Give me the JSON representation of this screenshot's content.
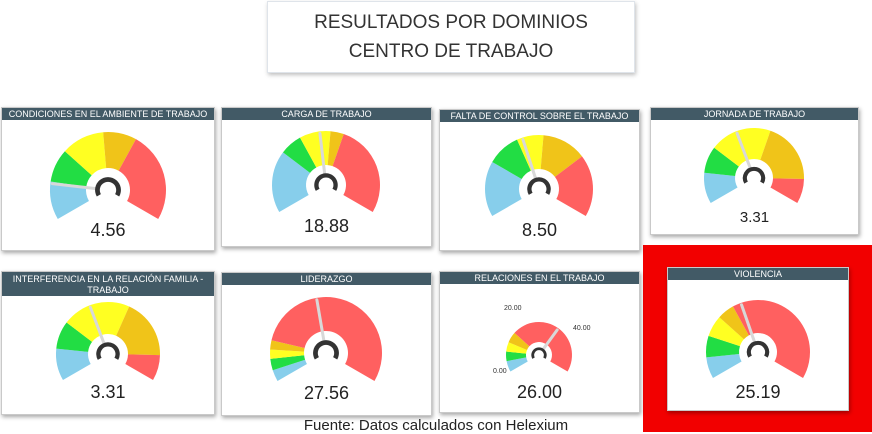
{
  "page": {
    "title": "RESULTADOS POR DOMINIOS CENTRO DE TRABAJO",
    "source": "Fuente: Datos calculados con Helexium"
  },
  "colors": {
    "header_bg": "#425a66",
    "blue": "#87ceeb",
    "green": "#22dd44",
    "yellow": "#ffff22",
    "amber": "#f0c419",
    "red": "#ff6060",
    "highlight": "#f20000"
  },
  "gauges": [
    {
      "title": "CONDICIONES EN EL AMBIENTE DE TRABAJO",
      "value": "4.56",
      "value_num": 4.56,
      "scale": [
        0,
        30
      ],
      "bands": [
        {
          "to": 0.16,
          "color": "blue"
        },
        {
          "to": 0.3,
          "color": "green"
        },
        {
          "to": 0.48,
          "color": "yellow"
        },
        {
          "to": 0.62,
          "color": "amber"
        },
        {
          "to": 1,
          "color": "red"
        }
      ]
    },
    {
      "title": "CARGA DE TRABAJO",
      "value": "18.88",
      "value_num": 18.88,
      "scale": [
        0,
        40
      ],
      "bands": [
        {
          "to": 0.28,
          "color": "blue"
        },
        {
          "to": 0.38,
          "color": "green"
        },
        {
          "to": 0.52,
          "color": "yellow"
        },
        {
          "to": 0.58,
          "color": "amber"
        },
        {
          "to": 1,
          "color": "red"
        }
      ]
    },
    {
      "title": "FALTA DE CONTROL SOBRE EL TRABAJO",
      "value": "8.50",
      "value_num": 8.5,
      "scale": [
        0,
        20
      ],
      "bands": [
        {
          "to": 0.25,
          "color": "blue"
        },
        {
          "to": 0.4,
          "color": "green"
        },
        {
          "to": 0.52,
          "color": "yellow"
        },
        {
          "to": 0.72,
          "color": "amber"
        },
        {
          "to": 1,
          "color": "red"
        }
      ]
    },
    {
      "title": "JORNADA DE TRABAJO",
      "value": "3.31",
      "value_num": 3.31,
      "scale": [
        0,
        8
      ],
      "bands": [
        {
          "to": 0.15,
          "color": "blue"
        },
        {
          "to": 0.28,
          "color": "green"
        },
        {
          "to": 0.58,
          "color": "yellow"
        },
        {
          "to": 0.88,
          "color": "amber"
        },
        {
          "to": 1,
          "color": "red"
        }
      ]
    },
    {
      "title": "INTERFERENCIA EN LA RELACIÓN FAMILIA - TRABAJO",
      "value": "3.31",
      "value_num": 3.31,
      "scale": [
        0,
        8
      ],
      "bands": [
        {
          "to": 0.15,
          "color": "blue"
        },
        {
          "to": 0.28,
          "color": "green"
        },
        {
          "to": 0.6,
          "color": "yellow"
        },
        {
          "to": 0.88,
          "color": "amber"
        },
        {
          "to": 1,
          "color": "red"
        }
      ]
    },
    {
      "title": "LIDERAZGO",
      "value": "27.56",
      "value_num": 27.56,
      "scale": [
        0,
        60
      ],
      "bands": [
        {
          "to": 0.05,
          "color": "blue"
        },
        {
          "to": 0.1,
          "color": "green"
        },
        {
          "to": 0.14,
          "color": "yellow"
        },
        {
          "to": 0.18,
          "color": "amber"
        },
        {
          "to": 1,
          "color": "red"
        }
      ]
    },
    {
      "title": "RELACIONES EN EL TRABAJO",
      "value": "26.00",
      "value_num": 26.0,
      "scale": [
        0,
        40
      ],
      "min_label": "0.00",
      "mid_label": "20.00",
      "max_label": "40.00",
      "bands": [
        {
          "to": 0.08,
          "color": "blue"
        },
        {
          "to": 0.15,
          "color": "green"
        },
        {
          "to": 0.22,
          "color": "yellow"
        },
        {
          "to": 0.3,
          "color": "amber"
        },
        {
          "to": 1,
          "color": "red"
        }
      ]
    },
    {
      "title": "VIOLENCIA",
      "value": "25.19",
      "value_num": 25.19,
      "scale": [
        0,
        60
      ],
      "bands": [
        {
          "to": 0.1,
          "color": "blue"
        },
        {
          "to": 0.2,
          "color": "green"
        },
        {
          "to": 0.3,
          "color": "yellow"
        },
        {
          "to": 0.38,
          "color": "amber"
        },
        {
          "to": 1,
          "color": "red"
        }
      ]
    }
  ]
}
